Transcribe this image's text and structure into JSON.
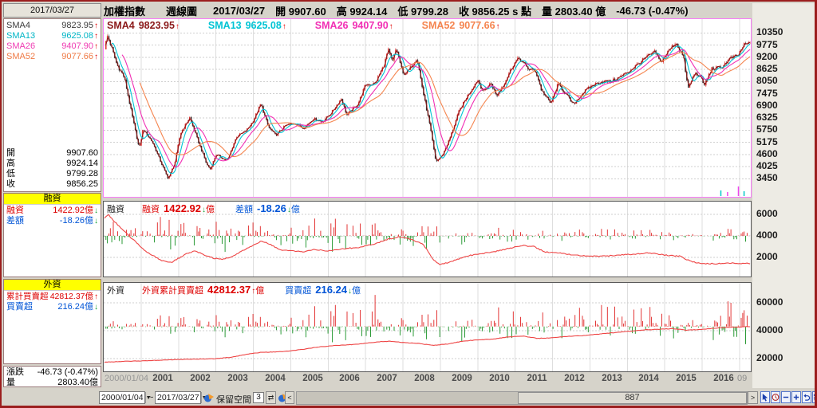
{
  "header": {
    "parts": [
      "加權指數",
      "週線圖",
      "2017/03/27",
      "開 9907.60",
      "高 9924.14",
      "低 9799.28",
      "收 9856.25 s 點",
      "量 2803.40 億",
      "-46.73 (-0.47%)"
    ]
  },
  "sidebar": {
    "date": "2017/03/27",
    "sma_rows": [
      {
        "label": "SMA4",
        "value": "9823.95",
        "arrow": "↑",
        "color": "#3b3b3b"
      },
      {
        "label": "SMA13",
        "value": "9625.08",
        "arrow": "↑",
        "color": "#00b5c5"
      },
      {
        "label": "SMA26",
        "value": "9407.90",
        "arrow": "↑",
        "color": "#ef3bb2"
      },
      {
        "label": "SMA52",
        "value": "9077.66",
        "arrow": "↑",
        "color": "#ef7a45"
      }
    ],
    "ohlc_rows": [
      {
        "label": "開",
        "value": "9907.60"
      },
      {
        "label": "高",
        "value": "9924.14"
      },
      {
        "label": "低",
        "value": "9799.28"
      },
      {
        "label": "收",
        "value": "9856.25"
      }
    ],
    "margin_section": {
      "title": "融資",
      "rows": [
        {
          "label": "融資",
          "value": "1422.92億",
          "arrow": "↓",
          "color": "#dd0000"
        },
        {
          "label": "差額",
          "value": "-18.26億",
          "arrow": "↓",
          "color": "#0054d6"
        }
      ]
    },
    "foreign_section": {
      "title": "外資",
      "rows": [
        {
          "label": "累計買賣超",
          "value": "42812.37億",
          "arrow": "↑",
          "color": "#dd0000"
        },
        {
          "label": "買賣超",
          "value": "216.24億",
          "arrow": "↓",
          "color": "#0054d6"
        }
      ]
    },
    "change_rows": [
      {
        "label": "漲跌",
        "value": "-46.73 (-0.47%)"
      },
      {
        "label": "量",
        "value": "2803.40億"
      }
    ]
  },
  "chart_data": [
    {
      "type": "candlestick",
      "title": "加權指數 週線圖",
      "legend": [
        {
          "name": "SMA4",
          "value": "9823.95",
          "arrow": "↑",
          "color": "#8b1a1a"
        },
        {
          "name": "SMA13",
          "value": "9625.08",
          "arrow": "↑",
          "color": "#00c4d4"
        },
        {
          "name": "SMA26",
          "value": "9407.90",
          "arrow": "↑",
          "color": "#f12fb4"
        },
        {
          "name": "SMA52",
          "value": "9077.66",
          "arrow": "↑",
          "color": "#f5854f"
        }
      ],
      "sma_periods": [
        4,
        13,
        26,
        52
      ],
      "xlim": [
        2000.0,
        2017.3
      ],
      "ylim": [
        2600,
        11000
      ],
      "yticks": [
        10350,
        9775,
        9200,
        8625,
        8050,
        7475,
        6900,
        6325,
        5750,
        5175,
        4600,
        4025,
        3450
      ],
      "up_color": "#dd2222",
      "down_color": "#2a2a2a",
      "close_keypoints": [
        [
          2000.0,
          9500
        ],
        [
          2000.1,
          10200
        ],
        [
          2000.2,
          9700
        ],
        [
          2000.35,
          8850
        ],
        [
          2000.55,
          8250
        ],
        [
          2000.75,
          6500
        ],
        [
          2000.95,
          4850
        ],
        [
          2001.05,
          5800
        ],
        [
          2001.3,
          5200
        ],
        [
          2001.5,
          4350
        ],
        [
          2001.72,
          3450
        ],
        [
          2001.9,
          4200
        ],
        [
          2002.05,
          5600
        ],
        [
          2002.3,
          6350
        ],
        [
          2002.5,
          5350
        ],
        [
          2002.75,
          4150
        ],
        [
          2002.85,
          3900
        ],
        [
          2003.0,
          4600
        ],
        [
          2003.3,
          4300
        ],
        [
          2003.55,
          5450
        ],
        [
          2003.8,
          5700
        ],
        [
          2004.0,
          6200
        ],
        [
          2004.2,
          7000
        ],
        [
          2004.4,
          5900
        ],
        [
          2004.6,
          5500
        ],
        [
          2004.85,
          5950
        ],
        [
          2005.1,
          6100
        ],
        [
          2005.35,
          5850
        ],
        [
          2005.6,
          6300
        ],
        [
          2005.85,
          6150
        ],
        [
          2006.1,
          6600
        ],
        [
          2006.35,
          7250
        ],
        [
          2006.5,
          6450
        ],
        [
          2006.8,
          7000
        ],
        [
          2007.0,
          7900
        ],
        [
          2007.25,
          7950
        ],
        [
          2007.5,
          8850
        ],
        [
          2007.6,
          9550
        ],
        [
          2007.72,
          8950
        ],
        [
          2007.82,
          9650
        ],
        [
          2008.0,
          8400
        ],
        [
          2008.15,
          8550
        ],
        [
          2008.37,
          9200
        ],
        [
          2008.55,
          7450
        ],
        [
          2008.72,
          5950
        ],
        [
          2008.88,
          4250
        ],
        [
          2009.05,
          4550
        ],
        [
          2009.25,
          5350
        ],
        [
          2009.5,
          6650
        ],
        [
          2009.75,
          7450
        ],
        [
          2010.0,
          8150
        ],
        [
          2010.15,
          7550
        ],
        [
          2010.35,
          8000
        ],
        [
          2010.5,
          7350
        ],
        [
          2010.7,
          7950
        ],
        [
          2010.95,
          8850
        ],
        [
          2011.1,
          9150
        ],
        [
          2011.35,
          8650
        ],
        [
          2011.55,
          8550
        ],
        [
          2011.7,
          7650
        ],
        [
          2011.95,
          7000
        ],
        [
          2012.15,
          7950
        ],
        [
          2012.4,
          7350
        ],
        [
          2012.55,
          6950
        ],
        [
          2012.8,
          7500
        ],
        [
          2013.05,
          7850
        ],
        [
          2013.3,
          8050
        ],
        [
          2013.55,
          8050
        ],
        [
          2013.8,
          8250
        ],
        [
          2014.05,
          8550
        ],
        [
          2014.3,
          8900
        ],
        [
          2014.55,
          9250
        ],
        [
          2014.75,
          9450
        ],
        [
          2014.88,
          8950
        ],
        [
          2015.1,
          9500
        ],
        [
          2015.3,
          9900
        ],
        [
          2015.5,
          9200
        ],
        [
          2015.62,
          7700
        ],
        [
          2015.8,
          8450
        ],
        [
          2015.95,
          8300
        ],
        [
          2016.05,
          7850
        ],
        [
          2016.25,
          8650
        ],
        [
          2016.5,
          8700
        ],
        [
          2016.75,
          9150
        ],
        [
          2016.95,
          9250
        ],
        [
          2017.1,
          9750
        ],
        [
          2017.25,
          9856
        ]
      ],
      "event_marks": [
        {
          "t": 2016.5,
          "color": "#00c8c8",
          "h": 7
        },
        {
          "t": 2016.68,
          "color": "#ee44ee",
          "h": 5
        },
        {
          "t": 2016.97,
          "color": "#ee44ee",
          "h": 12
        },
        {
          "t": 2017.12,
          "color": "#00c8c8",
          "h": 6
        }
      ]
    },
    {
      "type": "bar+line",
      "name": "融資",
      "legend": [
        {
          "name": "融資",
          "value": "1422.92",
          "arrow": "↓",
          "unit": "億",
          "color": "#dd0000"
        },
        {
          "name": "差額",
          "value": "-18.26",
          "arrow": "↓",
          "unit": "億",
          "color": "#0054d6"
        }
      ],
      "ylim": [
        200,
        7200
      ],
      "yticks": [
        6000,
        4000,
        2000
      ],
      "baseline": 4000,
      "line_color": "#ee4444",
      "bar_up": "#e02222",
      "bar_down": "#159022",
      "line_keypoints": [
        [
          2000.0,
          5600
        ],
        [
          2000.12,
          6000
        ],
        [
          2000.3,
          5300
        ],
        [
          2000.5,
          4600
        ],
        [
          2000.7,
          3900
        ],
        [
          2000.9,
          3300
        ],
        [
          2001.1,
          2600
        ],
        [
          2001.3,
          2200
        ],
        [
          2001.55,
          1700
        ],
        [
          2001.8,
          1500
        ],
        [
          2002.0,
          1900
        ],
        [
          2002.2,
          2300
        ],
        [
          2002.45,
          2600
        ],
        [
          2002.7,
          2200
        ],
        [
          2002.95,
          1900
        ],
        [
          2003.2,
          1800
        ],
        [
          2003.45,
          2100
        ],
        [
          2003.7,
          2600
        ],
        [
          2003.95,
          3000
        ],
        [
          2004.2,
          3500
        ],
        [
          2004.4,
          3300
        ],
        [
          2004.7,
          2700
        ],
        [
          2005.0,
          2600
        ],
        [
          2005.3,
          2500
        ],
        [
          2005.6,
          2700
        ],
        [
          2006.0,
          2600
        ],
        [
          2006.4,
          2800
        ],
        [
          2006.8,
          2900
        ],
        [
          2007.2,
          3200
        ],
        [
          2007.6,
          3700
        ],
        [
          2007.9,
          3900
        ],
        [
          2008.2,
          3700
        ],
        [
          2008.55,
          3200
        ],
        [
          2008.8,
          1800
        ],
        [
          2009.0,
          1300
        ],
        [
          2009.3,
          1600
        ],
        [
          2009.7,
          2100
        ],
        [
          2010.0,
          2300
        ],
        [
          2010.4,
          2500
        ],
        [
          2010.8,
          2800
        ],
        [
          2011.2,
          3100
        ],
        [
          2011.5,
          3000
        ],
        [
          2011.8,
          2500
        ],
        [
          2012.2,
          2400
        ],
        [
          2012.6,
          2200
        ],
        [
          2013.0,
          2100
        ],
        [
          2013.4,
          2100
        ],
        [
          2013.8,
          2200
        ],
        [
          2014.2,
          2300
        ],
        [
          2014.6,
          2400
        ],
        [
          2015.0,
          2200
        ],
        [
          2015.4,
          2100
        ],
        [
          2015.7,
          1600
        ],
        [
          2016.0,
          1400
        ],
        [
          2016.4,
          1400
        ],
        [
          2016.8,
          1450
        ],
        [
          2017.25,
          1423
        ]
      ],
      "bar_amp_keypoints": [
        [
          2000,
          1500
        ],
        [
          2002,
          1000
        ],
        [
          2008.6,
          1100
        ],
        [
          2009,
          650
        ],
        [
          2012,
          480
        ],
        [
          2017.3,
          380
        ]
      ]
    },
    {
      "type": "bar+line",
      "name": "外資",
      "legend": [
        {
          "name": "外資累計買賣超",
          "value": "42812.37",
          "arrow": "↑",
          "unit": "億",
          "color": "#dd0000"
        },
        {
          "name": "買賣超",
          "value": "216.24",
          "arrow": "↓",
          "unit": "億",
          "color": "#0054d6"
        }
      ],
      "ylim": [
        10900,
        74300
      ],
      "yticks": [
        60000,
        40000,
        20000
      ],
      "baseline": 43000,
      "line_color": "#ee4444",
      "bar_up": "#e02222",
      "bar_down": "#159022",
      "line_keypoints": [
        [
          2000.0,
          17500
        ],
        [
          2000.5,
          18000
        ],
        [
          2001.0,
          18400
        ],
        [
          2001.5,
          18900
        ],
        [
          2002.0,
          19400
        ],
        [
          2002.5,
          19700
        ],
        [
          2003.0,
          20000
        ],
        [
          2003.4,
          21000
        ],
        [
          2003.8,
          23000
        ],
        [
          2004.2,
          24500
        ],
        [
          2004.6,
          24800
        ],
        [
          2005.0,
          25500
        ],
        [
          2005.4,
          27000
        ],
        [
          2005.8,
          28500
        ],
        [
          2006.2,
          29500
        ],
        [
          2006.6,
          30000
        ],
        [
          2007.0,
          31000
        ],
        [
          2007.4,
          32200
        ],
        [
          2007.7,
          32500
        ],
        [
          2008.0,
          31500
        ],
        [
          2008.4,
          31000
        ],
        [
          2008.8,
          29500
        ],
        [
          2009.2,
          30500
        ],
        [
          2009.6,
          32500
        ],
        [
          2010.0,
          33500
        ],
        [
          2010.4,
          34000
        ],
        [
          2010.8,
          35500
        ],
        [
          2011.2,
          36200
        ],
        [
          2011.6,
          34500
        ],
        [
          2012.0,
          35000
        ],
        [
          2012.4,
          36000
        ],
        [
          2012.8,
          36500
        ],
        [
          2013.2,
          37500
        ],
        [
          2013.6,
          38500
        ],
        [
          2014.0,
          39500
        ],
        [
          2014.4,
          40500
        ],
        [
          2014.8,
          41000
        ],
        [
          2015.2,
          41500
        ],
        [
          2015.6,
          40400
        ],
        [
          2016.0,
          41000
        ],
        [
          2016.4,
          42000
        ],
        [
          2016.8,
          42600
        ],
        [
          2017.25,
          43000
        ]
      ],
      "bar_amp_keypoints": [
        [
          2000,
          3200
        ],
        [
          2003,
          5000
        ],
        [
          2005,
          7000
        ],
        [
          2007,
          9000
        ],
        [
          2009,
          8000
        ],
        [
          2012,
          8500
        ],
        [
          2017.3,
          8800
        ]
      ]
    }
  ],
  "xaxis": {
    "first": "2000/01/04",
    "years": [
      "2001",
      "2002",
      "2003",
      "2004",
      "2005",
      "2006",
      "2007",
      "2008",
      "2009",
      "2010",
      "2011",
      "2012",
      "2013",
      "2014",
      "2015",
      "2016"
    ],
    "last": "09"
  },
  "toolbar": {
    "date_from": "2000/01/04",
    "range_sep": "~",
    "date_to": "2017/03/27",
    "keep_label": "保留空間",
    "keep_value": "3",
    "scroll_count": "887",
    "prev_label": "<",
    "next_label": ">"
  }
}
